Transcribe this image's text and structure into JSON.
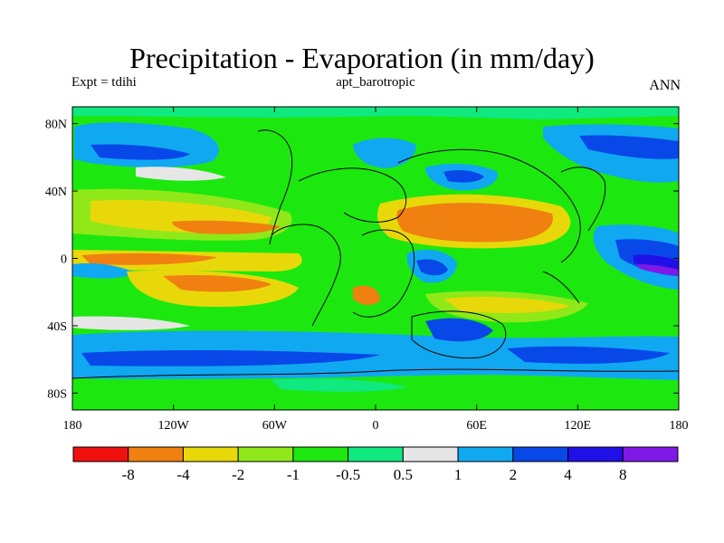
{
  "header": {
    "title": "Precipitation - Evaporation (in mm/day)",
    "left": "Expt = tdihi",
    "center": "apt_barotropic",
    "right": "ANN"
  },
  "axes": {
    "y_ticks": [
      {
        "label": "80N",
        "lat": 80
      },
      {
        "label": "40N",
        "lat": 40
      },
      {
        "label": "0",
        "lat": 0
      },
      {
        "label": "40S",
        "lat": -40
      },
      {
        "label": "80S",
        "lat": -80
      }
    ],
    "x_ticks": [
      {
        "label": "180",
        "lon": -180
      },
      {
        "label": "120W",
        "lon": -120
      },
      {
        "label": "60W",
        "lon": -60
      },
      {
        "label": "0",
        "lon": 0
      },
      {
        "label": "60E",
        "lon": 60
      },
      {
        "label": "120E",
        "lon": 120
      },
      {
        "label": "180",
        "lon": 180
      }
    ],
    "lon_range": [
      -180,
      180
    ],
    "lat_range": [
      -90,
      90
    ]
  },
  "colorbar": {
    "colors": [
      "#f0100e",
      "#f08010",
      "#e8d80a",
      "#90e818",
      "#1ce810",
      "#10e880",
      "#e6e6e6",
      "#10a8f0",
      "#0848e8",
      "#2010e8",
      "#8018e8"
    ],
    "labels": [
      "-8",
      "-4",
      "-2",
      "-1",
      "-0.5",
      "0.5",
      "1",
      "2",
      "4",
      "8"
    ]
  },
  "colors": {
    "ocean_background": "#10a8f0",
    "land_outline": "#000000"
  }
}
